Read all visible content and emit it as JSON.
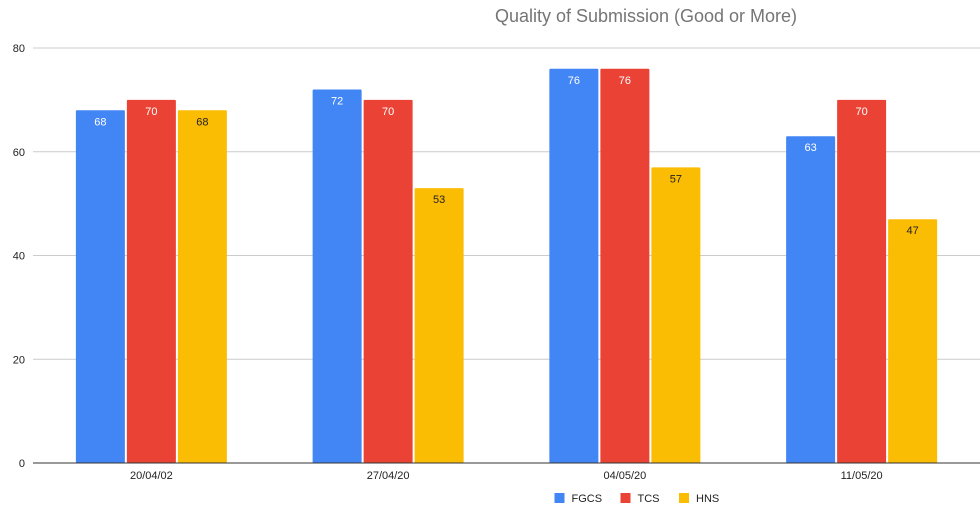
{
  "chart_data": {
    "type": "bar",
    "title": "Quality of Submission (Good or More)",
    "xlabel": "",
    "ylabel": "",
    "categories": [
      "20/04/02",
      "27/04/20",
      "04/05/20",
      "11/05/20"
    ],
    "series": [
      {
        "name": "FGCS",
        "color": "#4285F4",
        "label_color": "#ffffff",
        "values": [
          68,
          72,
          76,
          63
        ]
      },
      {
        "name": "TCS",
        "color": "#EA4335",
        "label_color": "#ffffff",
        "values": [
          70,
          70,
          76,
          70
        ]
      },
      {
        "name": "HNS",
        "color": "#FBBC04",
        "label_color": "#222222",
        "values": [
          68,
          53,
          57,
          47
        ]
      }
    ],
    "ylim": [
      0,
      80
    ],
    "yticks": [
      0,
      20,
      40,
      60,
      80
    ],
    "grid": true,
    "legend": "bottom"
  }
}
